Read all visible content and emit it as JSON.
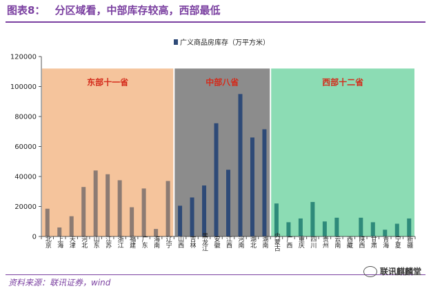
{
  "header": {
    "figure_label": "图表8：",
    "figure_title": "分区域看，中部库存较高，西部最低"
  },
  "footer": {
    "source": "资料来源：联讯证券，wind",
    "watermark_text": "联讯麒麟堂",
    "watermark_icon": "wechat-icon"
  },
  "chart_data": {
    "type": "bar",
    "series": [
      {
        "name": "广义商品房库存（万平方米）",
        "color": "#2e4a77",
        "values": [
          18500,
          6000,
          13500,
          33000,
          44000,
          41500,
          37500,
          19500,
          32000,
          5000,
          37000,
          20500,
          26000,
          34000,
          75500,
          44500,
          95000,
          66000,
          71500,
          22000,
          9500,
          12000,
          23000,
          10000,
          12500,
          0,
          12500,
          9500,
          4500,
          8500,
          12000
        ]
      }
    ],
    "categories": [
      "北京",
      "上海",
      "天津",
      "河北",
      "山东",
      "江苏",
      "浙江",
      "福建",
      "广东",
      "海南",
      "辽宁",
      "山西",
      "吉林",
      "黑龙江",
      "安徽",
      "江西",
      "河南",
      "湖北",
      "湖南",
      "内蒙古",
      "广西",
      "重庆",
      "四川",
      "贵州",
      "云南",
      "西藏",
      "陕西",
      "甘肃",
      "青海",
      "宁夏",
      "新疆"
    ],
    "regions": [
      {
        "label": "东部十一省",
        "count": 11,
        "fill": "#f5c49c",
        "bar_color": "#8c7b73"
      },
      {
        "label": "中部八省",
        "count": 8,
        "fill": "#8c8c8c",
        "bar_color": "#2e4a77"
      },
      {
        "label": "西部十二省",
        "count": 12,
        "fill": "#8cdcb4",
        "bar_color": "#2e8a7a"
      }
    ],
    "region_label_color": "#d42a1a",
    "region_band_top": 112000,
    "ylim": [
      0,
      120000
    ],
    "yticks": [
      "0",
      "20000",
      "40000",
      "60000",
      "80000",
      "100000",
      "120000"
    ],
    "xlabel": "",
    "ylabel": "",
    "legend_position": "top",
    "grid": false
  }
}
